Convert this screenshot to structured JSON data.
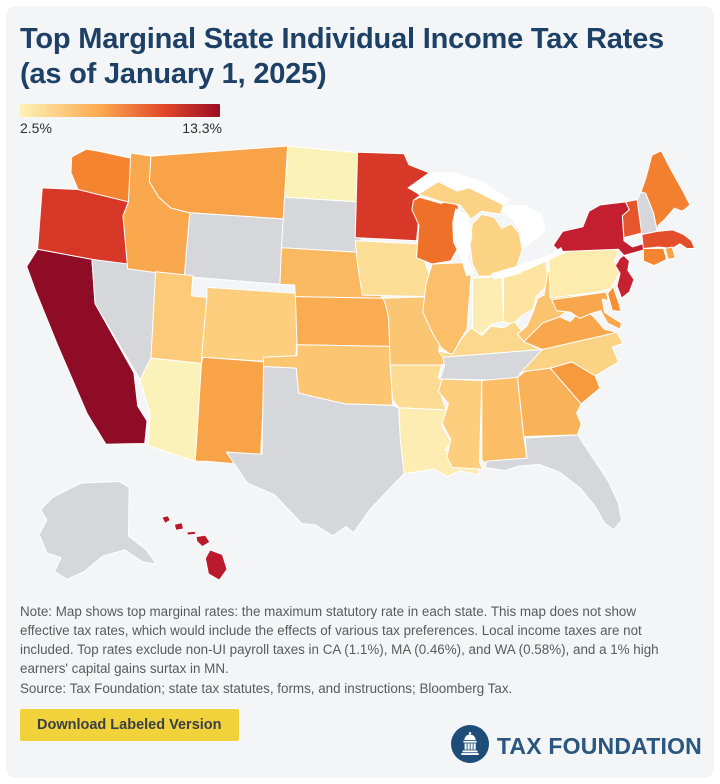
{
  "header": {
    "title": "Top Marginal State Individual Income Tax Rates (as of January 1, 2025)"
  },
  "legend": {
    "min_label": "2.5%",
    "max_label": "13.3%",
    "gradient_stops": [
      "#fcf2b6",
      "#fba94f 40%",
      "#e0482a 72%",
      "#9a0c24"
    ]
  },
  "chart_data": {
    "type": "heatmap",
    "subtype": "us-choropleth",
    "title": "Top Marginal State Individual Income Tax Rates (as of January 1, 2025)",
    "value_label": "Top marginal state individual income tax rate",
    "range": {
      "min": 2.5,
      "max": 13.3,
      "unit": "%"
    },
    "no_tax_color": "#d5d7da",
    "states": [
      {
        "abbr": "AL",
        "name": "Alabama",
        "value": 5.0,
        "fill": "#fbbe67"
      },
      {
        "abbr": "AK",
        "name": "Alaska",
        "value": null,
        "fill": "#d5d7da"
      },
      {
        "abbr": "AZ",
        "name": "Arizona",
        "value": 2.5,
        "fill": "#fbf2ba"
      },
      {
        "abbr": "AR",
        "name": "Arkansas",
        "value": 3.9,
        "fill": "#fcdb92"
      },
      {
        "abbr": "CA",
        "name": "California",
        "value": 13.3,
        "fill": "#8f0c26"
      },
      {
        "abbr": "CO",
        "name": "Colorado",
        "value": 4.4,
        "fill": "#fcce7e"
      },
      {
        "abbr": "CT",
        "name": "Connecticut",
        "value": 6.99,
        "fill": "#f48530"
      },
      {
        "abbr": "DE",
        "name": "Delaware",
        "value": 6.6,
        "fill": "#f68f36"
      },
      {
        "abbr": "FL",
        "name": "Florida",
        "value": null,
        "fill": "#d5d7da"
      },
      {
        "abbr": "GA",
        "name": "Georgia",
        "value": 5.39,
        "fill": "#fab259"
      },
      {
        "abbr": "HI",
        "name": "Hawaii",
        "value": 11.0,
        "fill": "#bb1a2e"
      },
      {
        "abbr": "ID",
        "name": "Idaho",
        "value": 5.695,
        "fill": "#f9a84e"
      },
      {
        "abbr": "IL",
        "name": "Illinois",
        "value": 4.95,
        "fill": "#fbbf69"
      },
      {
        "abbr": "IN",
        "name": "Indiana",
        "value": 3.0,
        "fill": "#fdedb2"
      },
      {
        "abbr": "IA",
        "name": "Iowa",
        "value": 3.8,
        "fill": "#fcdd96"
      },
      {
        "abbr": "KS",
        "name": "Kansas",
        "value": 5.58,
        "fill": "#f9ac52"
      },
      {
        "abbr": "KY",
        "name": "Kentucky",
        "value": 4.0,
        "fill": "#fcd88d"
      },
      {
        "abbr": "LA",
        "name": "Louisiana",
        "value": 3.0,
        "fill": "#fdedb2"
      },
      {
        "abbr": "ME",
        "name": "Maine",
        "value": 7.15,
        "fill": "#f3802e"
      },
      {
        "abbr": "MD",
        "name": "Maryland",
        "value": 5.75,
        "fill": "#f9a74c"
      },
      {
        "abbr": "MA",
        "name": "Massachusetts",
        "value": 9.0,
        "fill": "#e34e2b"
      },
      {
        "abbr": "MI",
        "name": "Michigan",
        "value": 4.25,
        "fill": "#fcd284"
      },
      {
        "abbr": "MN",
        "name": "Minnesota",
        "value": 9.85,
        "fill": "#d83827"
      },
      {
        "abbr": "MS",
        "name": "Mississippi",
        "value": 4.4,
        "fill": "#fcce7e"
      },
      {
        "abbr": "MO",
        "name": "Missouri",
        "value": 4.7,
        "fill": "#fbc673"
      },
      {
        "abbr": "MT",
        "name": "Montana",
        "value": 5.9,
        "fill": "#f8a348"
      },
      {
        "abbr": "NE",
        "name": "Nebraska",
        "value": 5.2,
        "fill": "#fab860"
      },
      {
        "abbr": "NV",
        "name": "Nevada",
        "value": null,
        "fill": "#d5d7da"
      },
      {
        "abbr": "NH",
        "name": "New Hampshire",
        "value": null,
        "fill": "#d5d7da"
      },
      {
        "abbr": "NJ",
        "name": "New Jersey",
        "value": 10.75,
        "fill": "#c52130"
      },
      {
        "abbr": "NM",
        "name": "New Mexico",
        "value": 5.9,
        "fill": "#f8a348"
      },
      {
        "abbr": "NY",
        "name": "New York",
        "value": 10.9,
        "fill": "#c41f30"
      },
      {
        "abbr": "NC",
        "name": "North Carolina",
        "value": 4.25,
        "fill": "#fcd284"
      },
      {
        "abbr": "ND",
        "name": "North Dakota",
        "value": 2.5,
        "fill": "#fbf2ba"
      },
      {
        "abbr": "OH",
        "name": "Ohio",
        "value": 3.5,
        "fill": "#fde4a1"
      },
      {
        "abbr": "OK",
        "name": "Oklahoma",
        "value": 4.75,
        "fill": "#fbc572"
      },
      {
        "abbr": "OR",
        "name": "Oregon",
        "value": 9.9,
        "fill": "#d73727"
      },
      {
        "abbr": "PA",
        "name": "Pennsylvania",
        "value": 3.07,
        "fill": "#fdecae"
      },
      {
        "abbr": "RI",
        "name": "Rhode Island",
        "value": 5.99,
        "fill": "#f8a145"
      },
      {
        "abbr": "SC",
        "name": "South Carolina",
        "value": 6.2,
        "fill": "#f79a3e"
      },
      {
        "abbr": "SD",
        "name": "South Dakota",
        "value": null,
        "fill": "#d5d7da"
      },
      {
        "abbr": "TN",
        "name": "Tennessee",
        "value": null,
        "fill": "#d5d7da"
      },
      {
        "abbr": "TX",
        "name": "Texas",
        "value": null,
        "fill": "#d5d7da"
      },
      {
        "abbr": "UT",
        "name": "Utah",
        "value": 4.55,
        "fill": "#fcca78"
      },
      {
        "abbr": "VT",
        "name": "Vermont",
        "value": 8.75,
        "fill": "#e6552c"
      },
      {
        "abbr": "VA",
        "name": "Virginia",
        "value": 5.75,
        "fill": "#f9a74c"
      },
      {
        "abbr": "WA",
        "name": "Washington",
        "value": 7.0,
        "fill": "#f4842f"
      },
      {
        "abbr": "WV",
        "name": "West Virginia",
        "value": 4.82,
        "fill": "#fbc36e"
      },
      {
        "abbr": "WI",
        "name": "Wisconsin",
        "value": 7.65,
        "fill": "#ef7129"
      },
      {
        "abbr": "WY",
        "name": "Wyoming",
        "value": null,
        "fill": "#d5d7da"
      }
    ]
  },
  "note": {
    "text": "Note: Map shows top marginal rates: the maximum statutory rate in each state. This map does not show effective tax rates, which would include the effects of various tax preferences. Local income taxes are not included. Top rates exclude non-UI payroll taxes in CA (1.1%), MA (0.46%), and WA (0.58%), and a 1% high earners' capital gains surtax in MN.",
    "source": "Source: Tax Foundation; state tax statutes, forms, and instructions; Bloomberg Tax."
  },
  "footer": {
    "download_button_label": "Download Labeled Version",
    "brand_name": "TAX FOUNDATION"
  },
  "colors": {
    "card_background": "#f4f5f6",
    "title_navy": "#1d4066",
    "button_yellow": "#f2d23b",
    "brand_blue": "#2a577f",
    "logo_circle": "#1d4d78",
    "lake_white": "#ffffff"
  }
}
